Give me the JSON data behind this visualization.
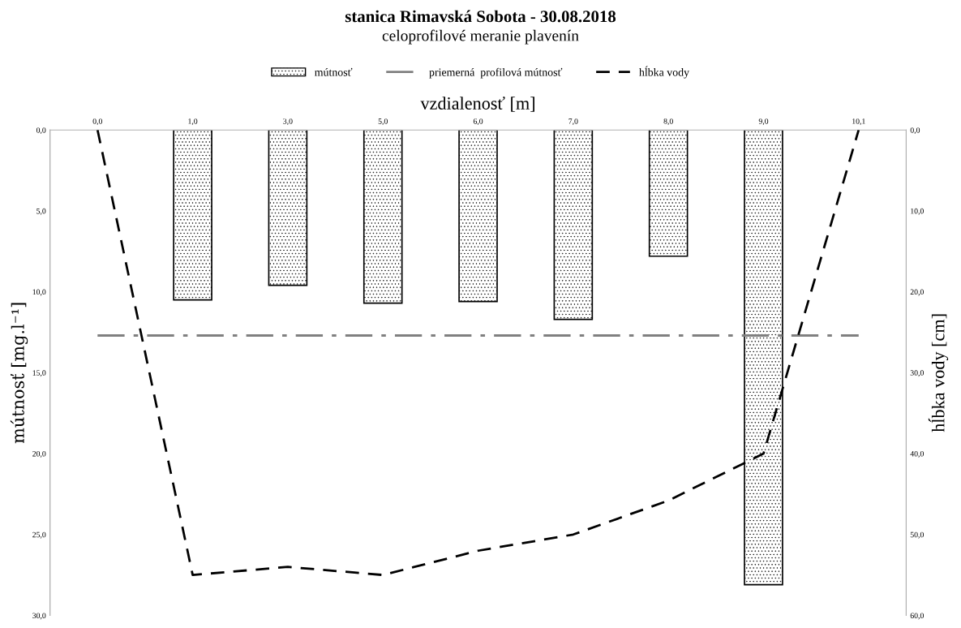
{
  "chart_data": {
    "type": "bar",
    "title": "stanica Rimavská Sobota - 30.08.2018",
    "subtitle": "celoprofilové meranie plavenín",
    "xlabel": "vzdialenosť [m]",
    "ylabel": "mútnosť [mg.l⁻¹]",
    "y2label": "hĺbka vody [cm]",
    "categories": [
      "0,0",
      "1,0",
      "3,0",
      "5,0",
      "6,0",
      "7,0",
      "8,0",
      "9,0",
      "10,1"
    ],
    "series": [
      {
        "name": "mútnosť",
        "color": "#000000",
        "values": [
          null,
          10.5,
          9.6,
          10.7,
          10.6,
          11.7,
          7.8,
          28.1,
          null
        ]
      },
      {
        "name": "hĺbka vody",
        "type": "line",
        "axis": "y2",
        "color": "#000000",
        "line_style": "dashed",
        "values": [
          0,
          55,
          54,
          55,
          52,
          50,
          45.8,
          40,
          0
        ]
      }
    ],
    "ref_lines": [
      {
        "axis": "y",
        "value": 12.7,
        "label": "priemerná  profilová mútnosť",
        "color": "#808080",
        "line_style": "dashdot"
      }
    ],
    "ylim": [
      30,
      0
    ],
    "yticks": [
      {
        "value": 0,
        "label": "0,0"
      },
      {
        "value": 5,
        "label": "5,0"
      },
      {
        "value": 10,
        "label": "10,0"
      },
      {
        "value": 15,
        "label": "15,0"
      },
      {
        "value": 20,
        "label": "20,0"
      },
      {
        "value": 25,
        "label": "25,0"
      },
      {
        "value": 30,
        "label": "30,0"
      }
    ],
    "y2lim": [
      60,
      0
    ],
    "y2ticks": [
      {
        "value": 0,
        "label": "0,0"
      },
      {
        "value": 10,
        "label": "10,0"
      },
      {
        "value": 20,
        "label": "20,0"
      },
      {
        "value": 30,
        "label": "30,0"
      },
      {
        "value": 40,
        "label": "40,0"
      },
      {
        "value": 50,
        "label": "50,0"
      },
      {
        "value": 60,
        "label": "60,0"
      }
    ],
    "grid": false,
    "legend": "top"
  }
}
